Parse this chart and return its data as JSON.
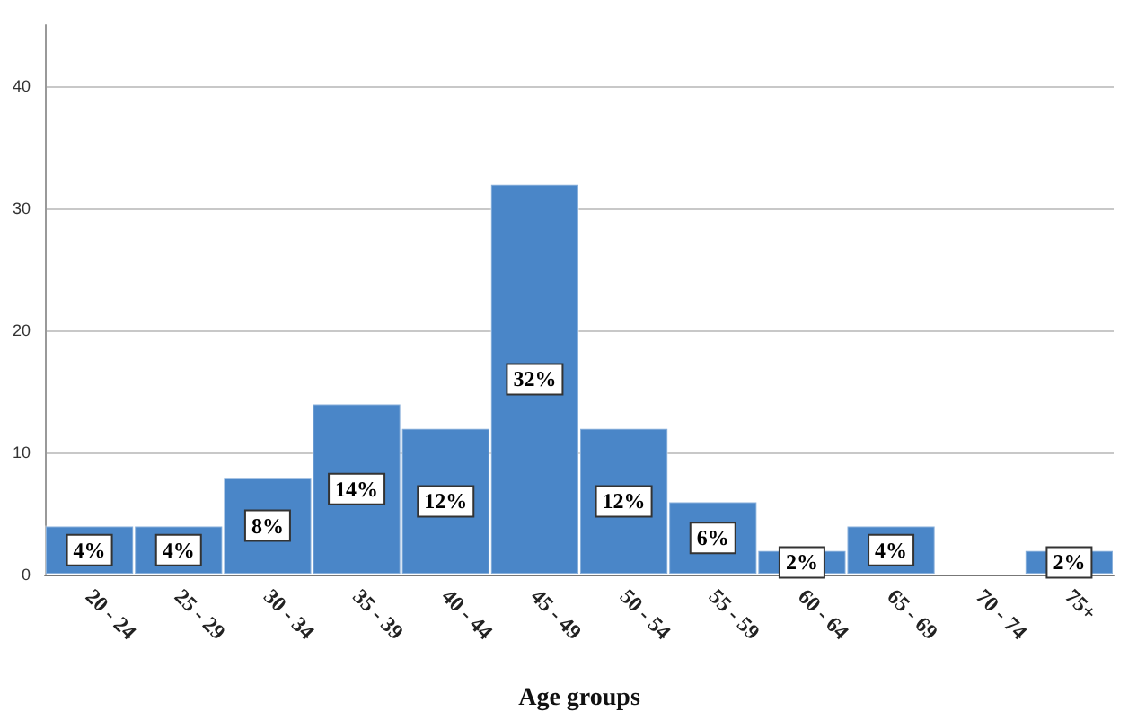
{
  "chart_data": {
    "type": "bar",
    "xlabel": "Age groups",
    "categories": [
      "20 - 24",
      "25 - 29",
      "30 - 34",
      "35 - 39",
      "40 - 44",
      "45 - 49",
      "50 - 54",
      "55 - 59",
      "60 - 64",
      "65 - 69",
      "70 - 74",
      "75+"
    ],
    "values": [
      4,
      4,
      8,
      14,
      12,
      32,
      12,
      6,
      2,
      4,
      null,
      2
    ],
    "value_labels": [
      "4%",
      "4%",
      "8%",
      "14%",
      "12%",
      "32%",
      "12%",
      "6%",
      "2%",
      "4%",
      null,
      "2%"
    ],
    "color": "#4a86c8",
    "ylim": [
      0,
      45
    ],
    "yticks": [
      0,
      10,
      20,
      30,
      40
    ],
    "grid": "y"
  }
}
